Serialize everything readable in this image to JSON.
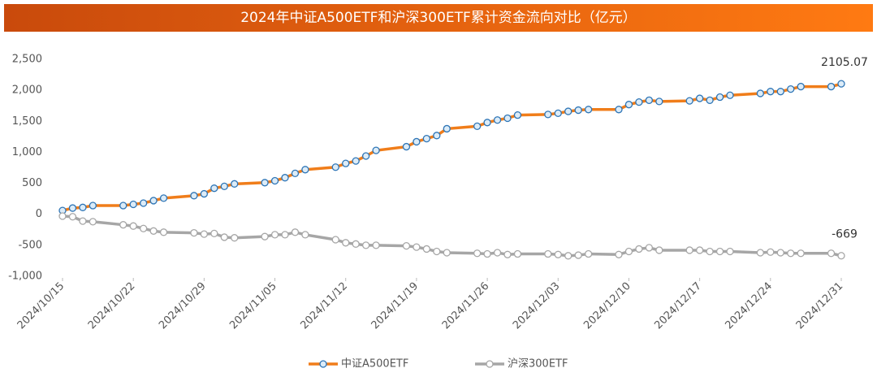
{
  "chart_data": {
    "type": "line",
    "title": "2024年中证A500ETF和沪深300ETF累计资金流向对比（亿元）",
    "x": [
      "2024/10/15",
      "2024/10/16",
      "2024/10/17",
      "2024/10/18",
      "2024/10/21",
      "2024/10/22",
      "2024/10/23",
      "2024/10/24",
      "2024/10/25",
      "2024/10/28",
      "2024/10/29",
      "2024/10/30",
      "2024/10/31",
      "2024/11/01",
      "2024/11/04",
      "2024/11/05",
      "2024/11/06",
      "2024/11/07",
      "2024/11/08",
      "2024/11/11",
      "2024/11/12",
      "2024/11/13",
      "2024/11/14",
      "2024/11/15",
      "2024/11/18",
      "2024/11/19",
      "2024/11/20",
      "2024/11/21",
      "2024/11/22",
      "2024/11/25",
      "2024/11/26",
      "2024/11/27",
      "2024/11/28",
      "2024/11/29",
      "2024/12/02",
      "2024/12/03",
      "2024/12/04",
      "2024/12/05",
      "2024/12/06",
      "2024/12/09",
      "2024/12/10",
      "2024/12/11",
      "2024/12/12",
      "2024/12/13",
      "2024/12/16",
      "2024/12/17",
      "2024/12/18",
      "2024/12/19",
      "2024/12/20",
      "2024/12/23",
      "2024/12/24",
      "2024/12/25",
      "2024/12/26",
      "2024/12/27",
      "2024/12/30",
      "2024/12/31"
    ],
    "series": [
      {
        "name": "中证A500ETF",
        "color": "#f07d1a",
        "values": [
          60,
          100,
          110,
          140,
          140,
          160,
          180,
          220,
          260,
          300,
          330,
          420,
          450,
          490,
          510,
          540,
          590,
          660,
          720,
          760,
          820,
          860,
          940,
          1030,
          1090,
          1170,
          1220,
          1270,
          1380,
          1420,
          1480,
          1520,
          1550,
          1600,
          1610,
          1630,
          1660,
          1680,
          1690,
          1690,
          1770,
          1810,
          1840,
          1820,
          1830,
          1870,
          1840,
          1890,
          1920,
          1950,
          1980,
          1980,
          2020,
          2060,
          2060,
          2105.07
        ]
      },
      {
        "name": "沪深300ETF",
        "color": "#a6a6a6",
        "values": [
          -30,
          -40,
          -110,
          -120,
          -170,
          -190,
          -230,
          -270,
          -290,
          -300,
          -320,
          -310,
          -370,
          -380,
          -360,
          -330,
          -330,
          -290,
          -330,
          -410,
          -460,
          -480,
          -500,
          -500,
          -510,
          -530,
          -560,
          -600,
          -620,
          -630,
          -640,
          -620,
          -650,
          -640,
          -640,
          -650,
          -670,
          -660,
          -640,
          -650,
          -600,
          -560,
          -540,
          -580,
          -580,
          -580,
          -600,
          -600,
          -600,
          -620,
          -610,
          -620,
          -630,
          -630,
          -630,
          -669
        ]
      }
    ],
    "xlim": [
      "2024/10/15",
      "2024/12/31"
    ],
    "xticks": [
      "2024/10/15",
      "2024/10/22",
      "2024/10/29",
      "2024/11/05",
      "2024/11/12",
      "2024/11/19",
      "2024/11/26",
      "2024/12/03",
      "2024/12/10",
      "2024/12/17",
      "2024/12/24",
      "2024/12/31"
    ],
    "ylim": [
      -1000,
      2500
    ],
    "yticks": [
      {
        "value": -1000,
        "label": "-1,000"
      },
      -500,
      0,
      500,
      {
        "value": 1000,
        "label": "1,000"
      },
      {
        "value": 1500,
        "label": "1,500"
      },
      {
        "value": 2000,
        "label": "2,000"
      },
      {
        "value": 2500,
        "label": "2,500"
      }
    ],
    "grid": false,
    "legend": "bottom"
  }
}
